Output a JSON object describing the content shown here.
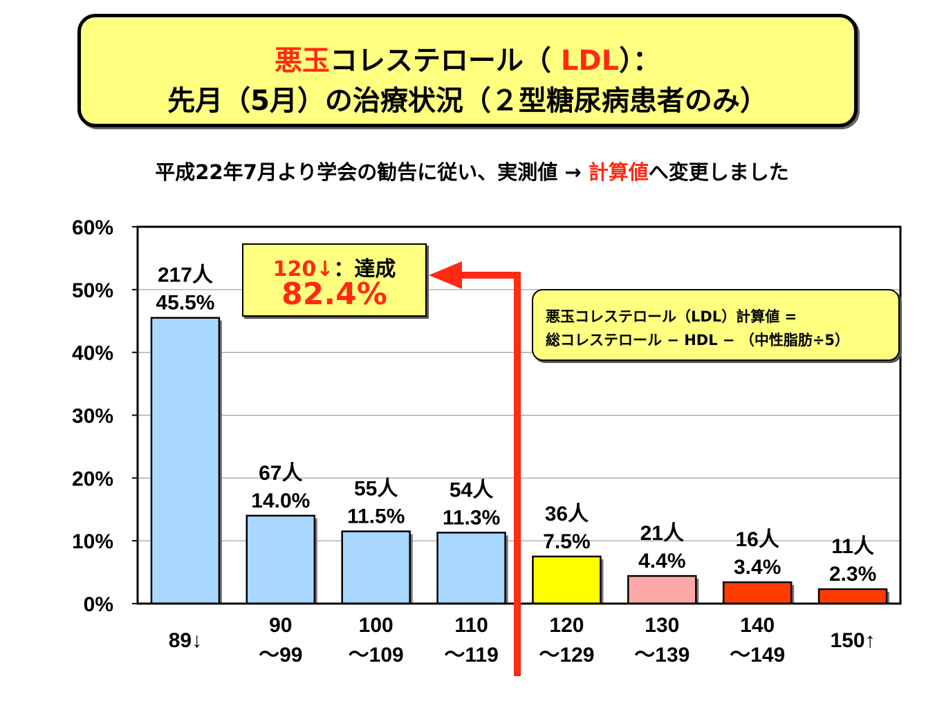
{
  "title": {
    "line1_red": "悪玉",
    "line1_mid": "コレステロール（ ",
    "line1_ldl": "LDL",
    "line1_end": "）：",
    "line2": "先月（5月）の治療状況（２型糖尿病患者のみ）"
  },
  "subtitle": {
    "before": "平成22年7月より学会の勧告に従い、実測値 ",
    "arrow": "→ ",
    "red": "計算値",
    "after": "へ変更しました"
  },
  "achievement": {
    "label_red": "120↓",
    "label_rest": "：達成",
    "value": "82.4%"
  },
  "formula": {
    "line1": "悪玉コレステロール（LDL）計算値 =",
    "line2": "総コレステロール − HDL − （中性脂肪÷5）"
  },
  "colors": {
    "title_box": "#ffff80",
    "accent_red": "#ff2a12",
    "arrow_red": "#ff2a12"
  },
  "chart_data": {
    "type": "bar",
    "ylim": [
      0,
      60
    ],
    "yticks": [
      "0%",
      "10%",
      "20%",
      "30%",
      "40%",
      "50%",
      "60%"
    ],
    "grid": true,
    "categories": [
      [
        "89↓"
      ],
      [
        "90",
        "～99"
      ],
      [
        "100",
        "～109"
      ],
      [
        "110",
        "～119"
      ],
      [
        "120",
        "～129"
      ],
      [
        "130",
        "～139"
      ],
      [
        "140",
        "～149"
      ],
      [
        "150↑"
      ]
    ],
    "values": [
      45.5,
      14.0,
      11.5,
      11.3,
      7.5,
      4.4,
      3.4,
      2.3
    ],
    "counts": [
      "217人",
      "67人",
      "55人",
      "54人",
      "36人",
      "21人",
      "16人",
      "11人"
    ],
    "labels": [
      "45.5%",
      "14.0%",
      "11.5%",
      "11.3%",
      "7.5%",
      "4.4%",
      "3.4%",
      "2.3%"
    ],
    "bar_colors": [
      "#a8d8ff",
      "#a8d8ff",
      "#a8d8ff",
      "#a8d8ff",
      "#ffff00",
      "#ffa8a8",
      "#ff3c00",
      "#ff3c00"
    ]
  }
}
